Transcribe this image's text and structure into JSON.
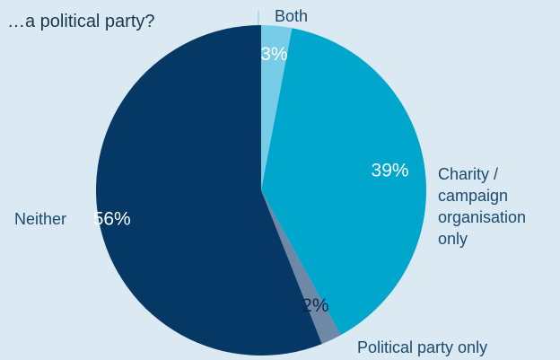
{
  "chart_data": {
    "type": "pie",
    "title": "…a political party?",
    "slices": [
      {
        "label": "Both",
        "value": 3,
        "value_label": "3%",
        "color": "#77cde6"
      },
      {
        "label": "Charity / campaign organisation only",
        "label_lines": [
          "Charity /",
          "campaign",
          "organisation",
          "only"
        ],
        "value": 39,
        "value_label": "39%",
        "color": "#00a6cc"
      },
      {
        "label": "Political party only",
        "value": 2,
        "value_label": "2%",
        "color": "#6f88a6"
      },
      {
        "label": "Neither",
        "value": 56,
        "value_label": "56%",
        "color": "#063866"
      }
    ],
    "start_angle_deg": 0,
    "direction": "clockwise"
  },
  "colors": {
    "background": "#dbe9f2",
    "label_text": "#1a4a6e",
    "title_text": "#17384f"
  }
}
